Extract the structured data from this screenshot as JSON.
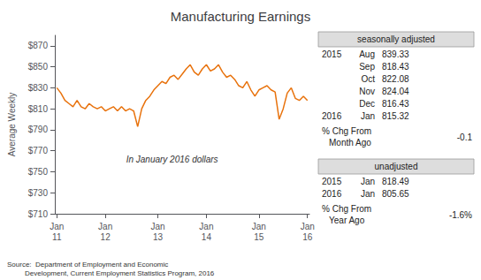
{
  "chart_data": {
    "type": "line",
    "title": "Manufacturing Earnings",
    "ylabel": "Average Weekly",
    "annotation": "In January 2016 dollars",
    "source": "Source:  Department of Employment and Economic\n         Development, Current Employment Statistics Program, 2016",
    "color": "#E8720C",
    "grid": false,
    "categories": [
      "Jan\n11",
      null,
      null,
      null,
      null,
      null,
      null,
      null,
      null,
      null,
      null,
      null,
      "Jan\n12",
      null,
      null,
      null,
      null,
      null,
      null,
      null,
      null,
      null,
      null,
      null,
      null,
      "Jan\n13",
      null,
      null,
      null,
      null,
      null,
      null,
      null,
      null,
      null,
      null,
      null,
      "Jan\n14",
      null,
      null,
      null,
      null,
      null,
      null,
      null,
      null,
      null,
      null,
      null,
      null,
      "Jan\n15",
      null,
      null,
      null,
      null,
      null,
      null,
      null,
      null,
      null,
      null,
      null,
      "Jan\n16"
    ],
    "values": [
      830,
      825,
      818,
      815,
      812,
      818,
      812,
      810,
      815,
      812,
      810,
      812,
      808,
      810,
      812,
      808,
      812,
      808,
      810,
      808,
      793,
      810,
      818,
      822,
      828,
      832,
      836,
      834,
      840,
      842,
      838,
      843,
      848,
      852,
      845,
      842,
      848,
      852,
      846,
      848,
      852,
      845,
      840,
      842,
      838,
      832,
      830,
      836,
      828,
      822,
      828,
      830,
      832,
      828,
      826,
      800,
      810,
      825,
      830,
      820,
      818,
      822,
      818
    ],
    "ylim": [
      710,
      880
    ],
    "yticks": [
      {
        "value": 710,
        "label": "$710"
      },
      {
        "value": 730,
        "label": "$730"
      },
      {
        "value": 750,
        "label": "$750"
      },
      {
        "value": 770,
        "label": "$770"
      },
      {
        "value": 790,
        "label": "$790"
      },
      {
        "value": 810,
        "label": "$810"
      },
      {
        "value": 830,
        "label": "$830"
      },
      {
        "value": 850,
        "label": "$850"
      },
      {
        "value": 870,
        "label": "$870"
      }
    ],
    "side_table": [
      {
        "label": "seasonally adjusted",
        "rows": [
          [
            "2015",
            "Aug",
            "839.33"
          ],
          [
            null,
            "Sep",
            "818.43"
          ],
          [
            null,
            "Oct",
            "822.08"
          ],
          [
            null,
            "Nov",
            "824.04"
          ],
          [
            null,
            "Dec",
            "816.43"
          ],
          [
            "2016",
            "Jan",
            "815.32"
          ]
        ],
        "change_label": [
          "% Chg From",
          "Month Ago"
        ],
        "change": "-0.1"
      },
      {
        "label": "unadjusted",
        "rows": [
          [
            "2015",
            "Jan",
            "818.49"
          ],
          [
            "2016",
            "Jan",
            "805.65"
          ]
        ],
        "change_label": [
          "% Chg From",
          "Year Ago"
        ],
        "change": "-1.6%"
      }
    ]
  }
}
